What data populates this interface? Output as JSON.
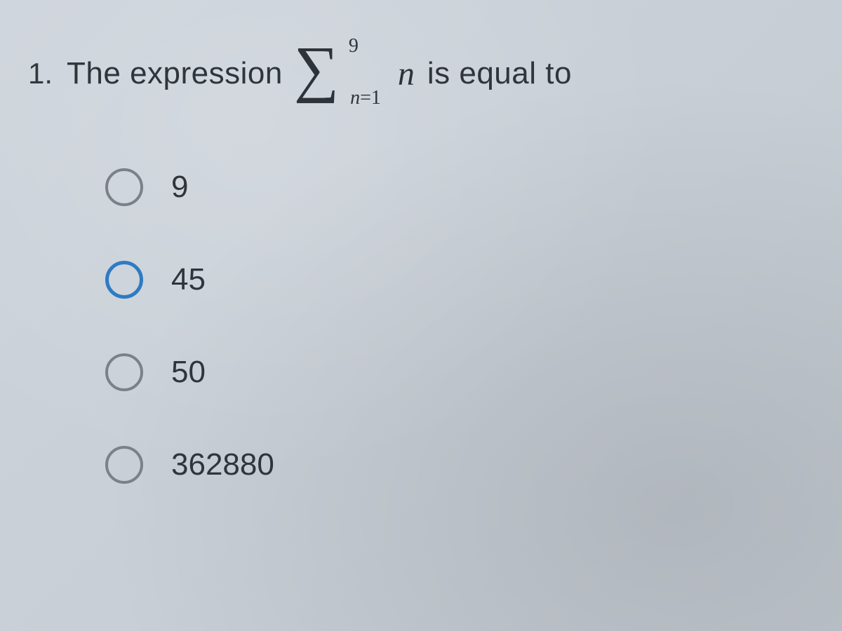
{
  "question": {
    "number": "1.",
    "text_before": "The expression",
    "sigma": {
      "upper": "9",
      "lower_var": "n",
      "lower_eq": "=",
      "lower_val": "1"
    },
    "summand": "n",
    "text_after": "is equal to"
  },
  "options": [
    {
      "label": "9",
      "highlight": false
    },
    {
      "label": "45",
      "highlight": true
    },
    {
      "label": "50",
      "highlight": false
    },
    {
      "label": "362880",
      "highlight": false
    }
  ],
  "style": {
    "background_color": "#cdd4db",
    "text_color": "#2f353b",
    "radio_border": "#7a8189",
    "radio_highlight": "#2e7bc4",
    "question_fontsize": 44,
    "option_fontsize": 44,
    "radio_size": 54,
    "radio_border_width": 4
  }
}
